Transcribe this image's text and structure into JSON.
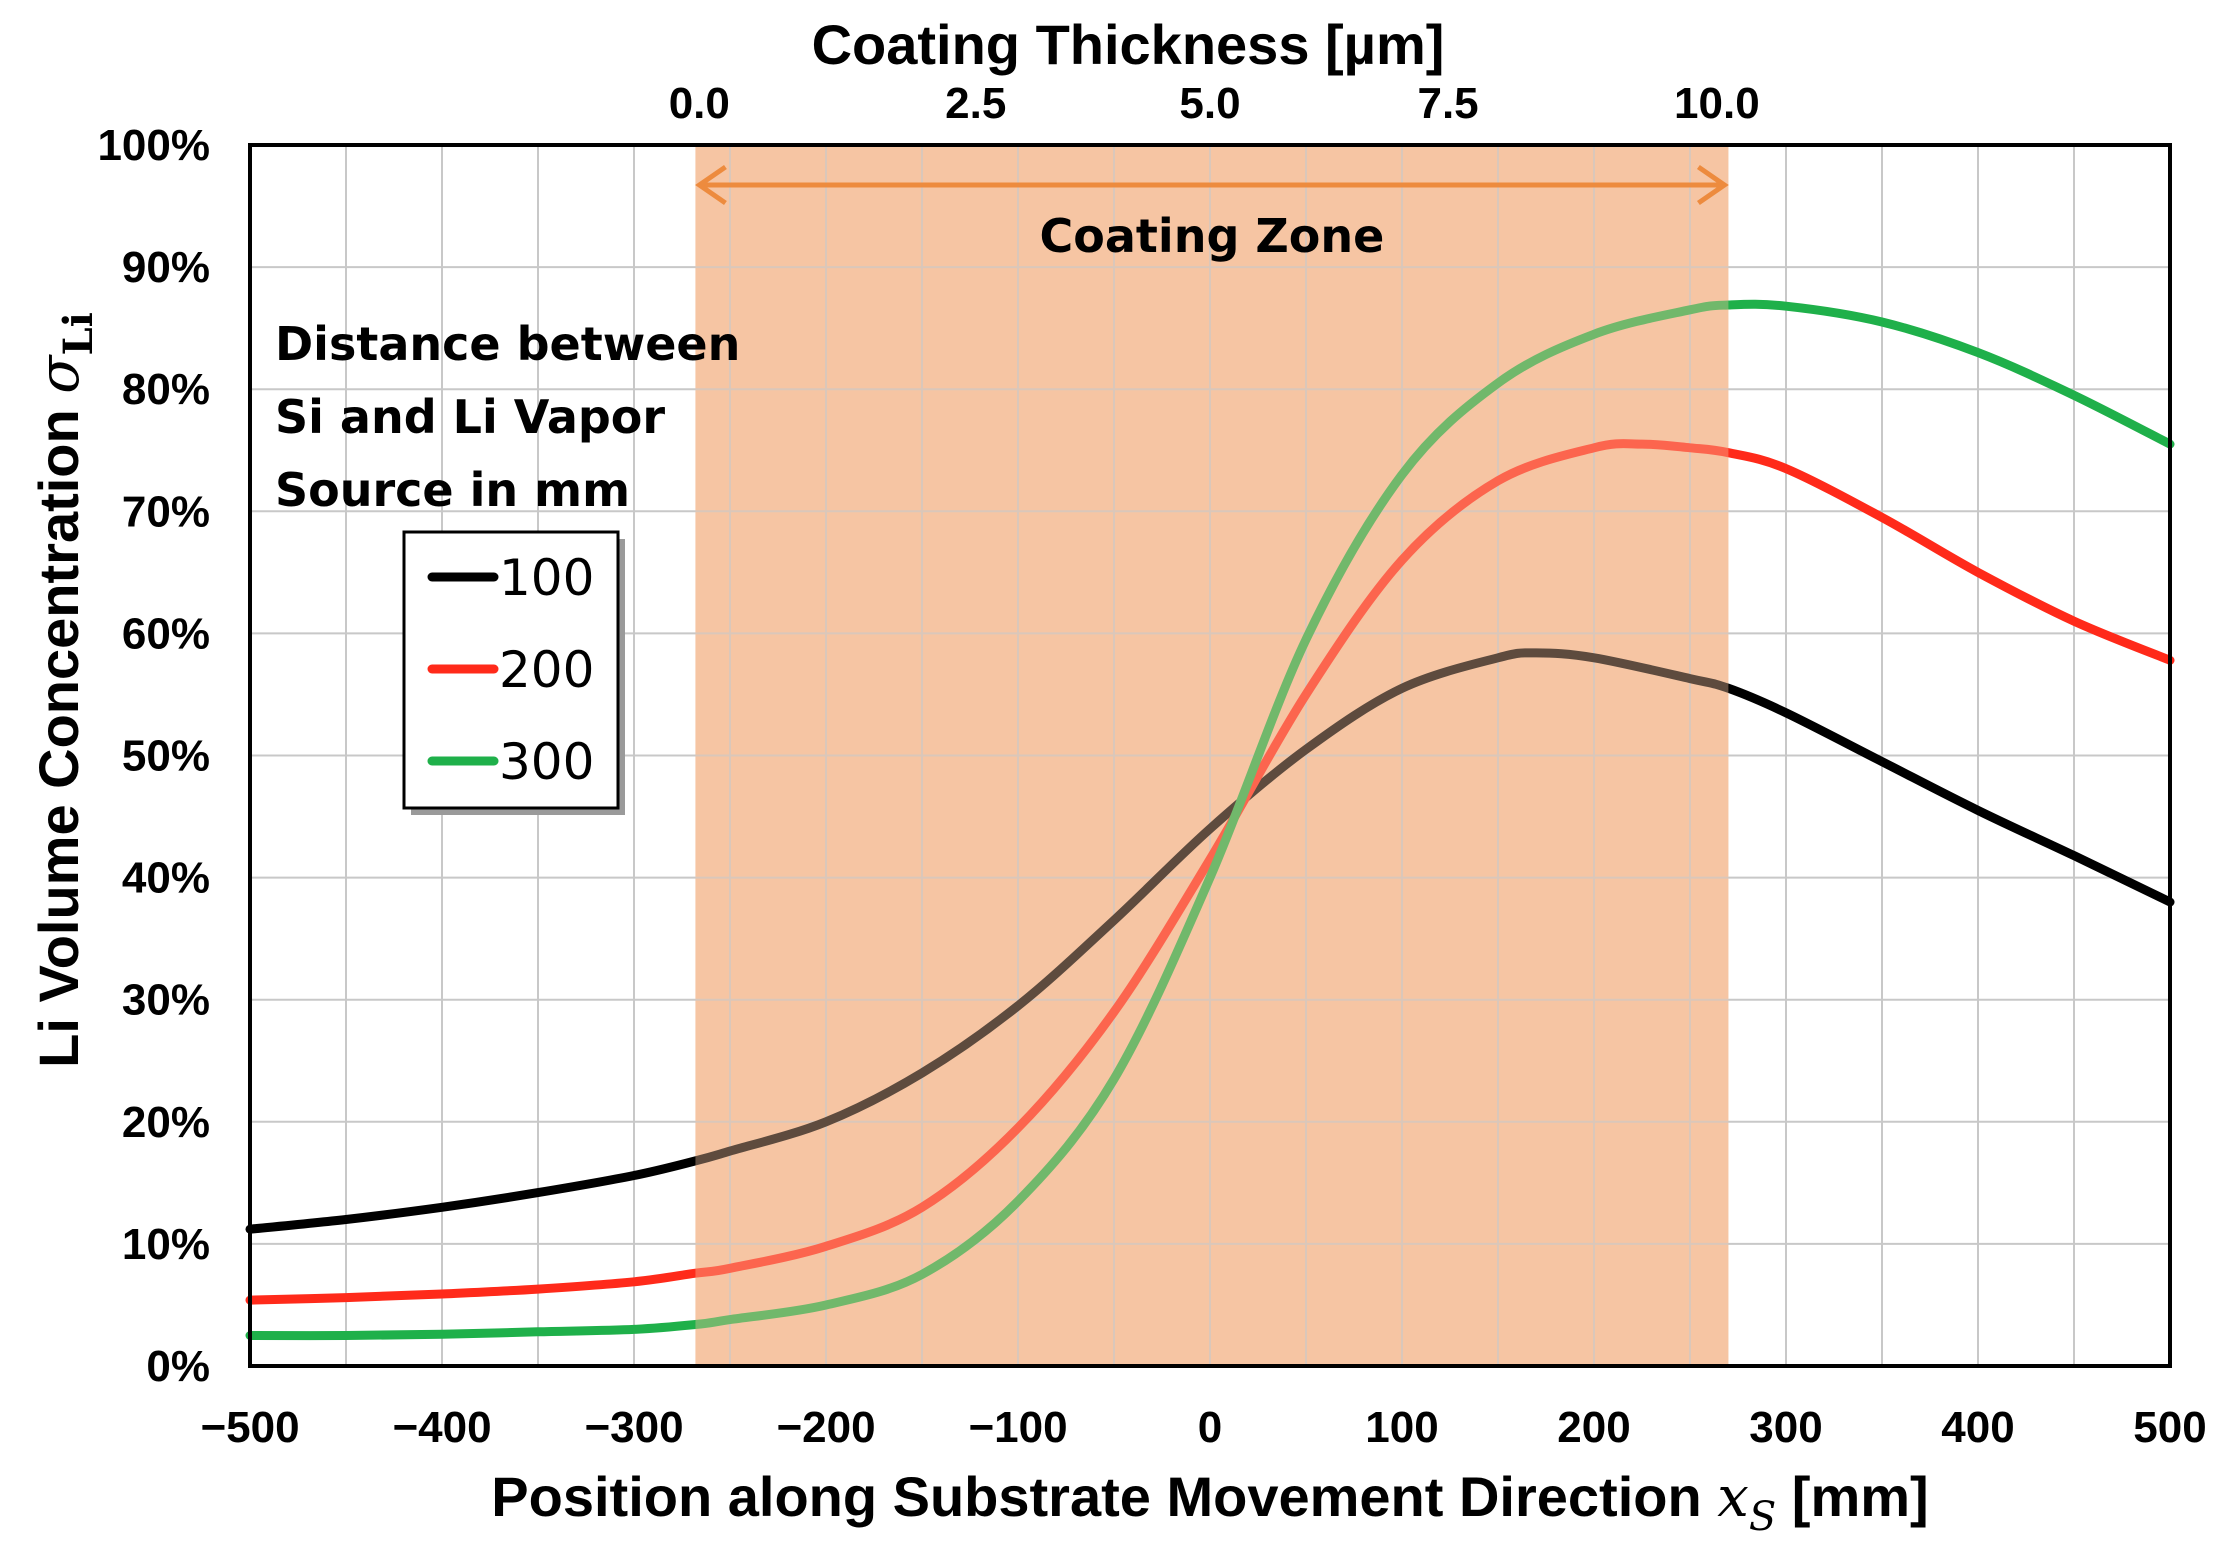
{
  "chart_data": {
    "type": "line",
    "top_axis": {
      "title": "Coating Thickness [µm]",
      "ticks": [
        {
          "label": "0.0",
          "x": -266
        },
        {
          "label": "2.5",
          "x": -122
        },
        {
          "label": "5.0",
          "x": 0
        },
        {
          "label": "7.5",
          "x": 124
        },
        {
          "label": "10.0",
          "x": 264
        }
      ]
    },
    "ylabel_main": "Li Volume Concentration ",
    "ylabel_symbol": "σ",
    "ylabel_sub": "Li",
    "xlabel_main": "Position along Substrate Movement Direction ",
    "xlabel_symbol": "x",
    "xlabel_sub": "S",
    "xlabel_unit": " [mm]",
    "xlim": [
      -500,
      500
    ],
    "ylim": [
      0,
      100
    ],
    "x_tick_labels": [
      "−500",
      "−400",
      "−300",
      "−200",
      "−100",
      "0",
      "100",
      "200",
      "300",
      "400",
      "500"
    ],
    "x_ticks": [
      -500,
      -400,
      -300,
      -200,
      -100,
      0,
      100,
      200,
      300,
      400,
      500
    ],
    "y_tick_labels": [
      "0%",
      "10%",
      "20%",
      "30%",
      "40%",
      "50%",
      "60%",
      "70%",
      "80%",
      "90%",
      "100%"
    ],
    "y_ticks": [
      0,
      10,
      20,
      30,
      40,
      50,
      60,
      70,
      80,
      90,
      100
    ],
    "grid": true,
    "coating_zone": {
      "label": "Coating Zone",
      "x_start": -268,
      "x_end": 270,
      "fill_color": "#f6c6a4",
      "arrow_color": "#ed8b3e"
    },
    "legend_title_lines": [
      "Distance between",
      "Si and Li Vapor",
      "Source in mm"
    ],
    "legend_placement": "left",
    "series": [
      {
        "name": "100",
        "color": "#000000",
        "x": [
          -500,
          -450,
          -400,
          -350,
          -300,
          -268,
          -250,
          -200,
          -150,
          -100,
          -50,
          0,
          50,
          100,
          150,
          170,
          200,
          250,
          270,
          300,
          350,
          400,
          450,
          500
        ],
        "values": [
          11.2,
          12.0,
          13.0,
          14.2,
          15.6,
          16.8,
          17.6,
          20.0,
          24.0,
          29.5,
          36.5,
          44.0,
          50.5,
          55.5,
          58.0,
          58.4,
          58.0,
          56.3,
          55.5,
          53.5,
          49.5,
          45.5,
          41.8,
          38.0
        ]
      },
      {
        "name": "200",
        "color": "#ff2a1a",
        "x": [
          -500,
          -450,
          -400,
          -350,
          -300,
          -268,
          -250,
          -200,
          -150,
          -100,
          -50,
          0,
          50,
          100,
          150,
          200,
          225,
          250,
          270,
          300,
          350,
          400,
          450,
          500
        ],
        "values": [
          5.4,
          5.6,
          5.9,
          6.3,
          6.9,
          7.6,
          8.0,
          9.8,
          13.0,
          19.5,
          29.0,
          41.5,
          55.0,
          66.0,
          72.5,
          75.2,
          75.5,
          75.2,
          74.8,
          73.5,
          69.5,
          65.0,
          61.0,
          57.8
        ]
      },
      {
        "name": "300",
        "color": "#1fb04a",
        "x": [
          -500,
          -450,
          -400,
          -350,
          -300,
          -268,
          -250,
          -200,
          -150,
          -100,
          -50,
          0,
          50,
          100,
          150,
          200,
          250,
          270,
          300,
          350,
          400,
          450,
          500
        ],
        "values": [
          2.5,
          2.5,
          2.6,
          2.8,
          3.0,
          3.4,
          3.8,
          5.0,
          7.5,
          13.5,
          23.5,
          40.0,
          59.5,
          73.0,
          80.5,
          84.5,
          86.5,
          86.9,
          86.8,
          85.5,
          83.0,
          79.5,
          75.5
        ]
      }
    ]
  }
}
